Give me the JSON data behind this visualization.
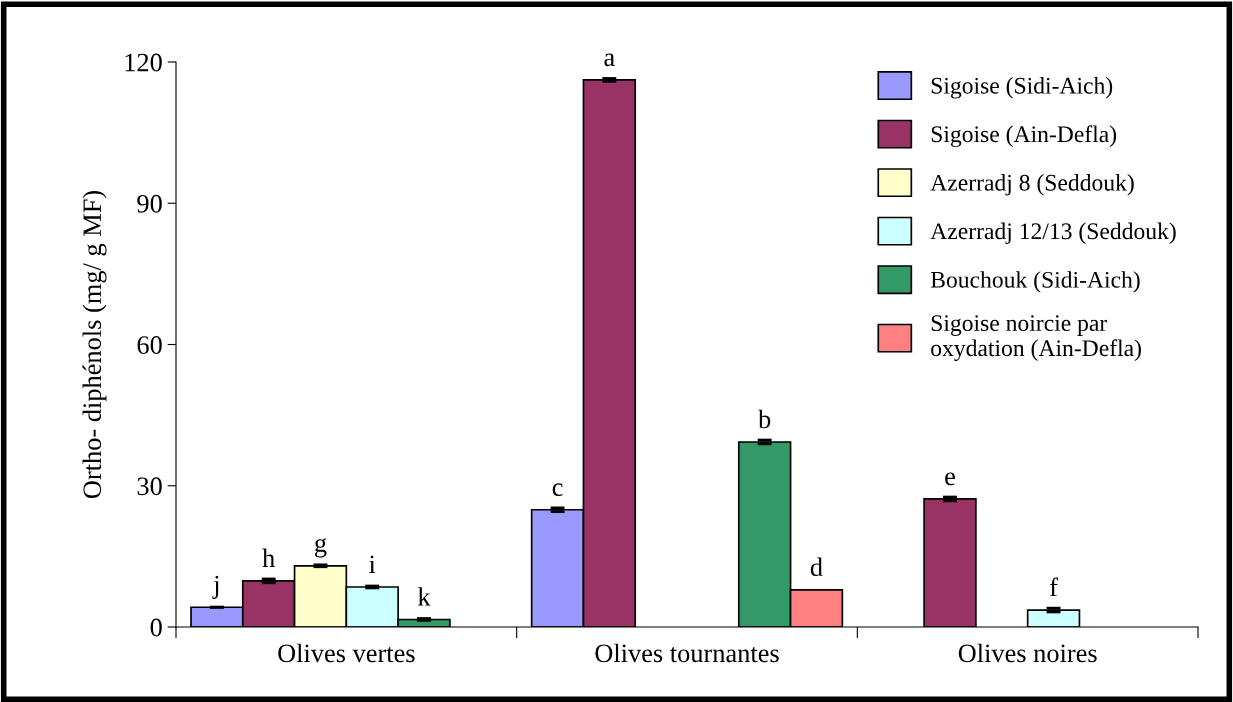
{
  "chart_data": {
    "type": "bar",
    "ylabel": "Ortho- diphénols (mg/ g MF)",
    "categories": [
      "Olives vertes",
      "Olives tournantes",
      "Olives noires"
    ],
    "series": [
      {
        "name": "Sigoise (Sidi-Aich)",
        "color": "#9999ff",
        "values": [
          4.2,
          24.9,
          null
        ],
        "errors": [
          null,
          0.4,
          null
        ],
        "value_labels": [
          "j",
          "c",
          null
        ]
      },
      {
        "name": "Sigoise (Ain-Defla)",
        "color": "#993366",
        "values": [
          9.8,
          116.2,
          27.2
        ],
        "errors": [
          0.4,
          0.3,
          0.4
        ],
        "value_labels": [
          "h",
          "a",
          "e"
        ]
      },
      {
        "name": "Azerradj 8 (Seddouk)",
        "color": "#ffffcc",
        "values": [
          13.0,
          null,
          null
        ],
        "errors": [
          0.2,
          null,
          null
        ],
        "value_labels": [
          "g",
          null,
          null
        ]
      },
      {
        "name": "Azerradj 12/13 (Seddouk)",
        "color": "#ccffff",
        "values": [
          8.5,
          null,
          3.6
        ],
        "errors": [
          0.2,
          null,
          0.4
        ],
        "value_labels": [
          "i",
          null,
          "f"
        ]
      },
      {
        "name": "Bouchouk (Sidi-Aich)",
        "color": "#339966",
        "values": [
          1.6,
          39.3,
          null
        ],
        "errors": [
          0.2,
          0.4,
          null
        ],
        "value_labels": [
          "k",
          "b",
          null
        ]
      },
      {
        "name": "Sigoise noircie par\noxydation (Ain-Defla)",
        "color": "#ff8080",
        "values": [
          null,
          7.9,
          null
        ],
        "value_labels": [
          null,
          "d",
          null
        ]
      }
    ],
    "ylim": [
      0,
      120
    ],
    "yticks": [
      0,
      30,
      60,
      90,
      120
    ],
    "grid": false,
    "legend": "top right"
  }
}
